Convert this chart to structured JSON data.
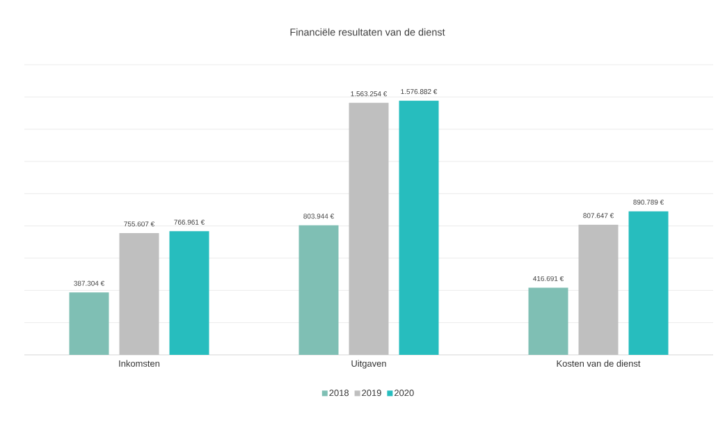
{
  "chart_data": {
    "type": "bar",
    "title": "Financiële resultaten van de dienst",
    "categories": [
      "Inkomsten",
      "Uitgaven",
      "Kosten van de dienst"
    ],
    "series": [
      {
        "name": "2018",
        "color": "#7fbfb4",
        "values": [
          387304,
          803944,
          416691
        ],
        "value_labels": [
          "387.304 €",
          "803.944 €",
          "416.691 €"
        ]
      },
      {
        "name": "2019",
        "color": "#bfbfbf",
        "values": [
          755607,
          1563254,
          807647
        ],
        "value_labels": [
          "755.607 €",
          "1.563.254 €",
          "807.647 €"
        ]
      },
      {
        "name": "2020",
        "color": "#27bdbe",
        "values": [
          766961,
          1576882,
          890789
        ],
        "value_labels": [
          "766.961 €",
          "1.576.882 €",
          "890.789 €"
        ]
      }
    ],
    "ylim": [
      0,
      1800000
    ],
    "yticks": [
      {
        "value": 0,
        "label": null
      },
      {
        "value": 200000,
        "label": null
      },
      {
        "value": 400000,
        "label": null
      },
      {
        "value": 600000,
        "label": null
      },
      {
        "value": 800000,
        "label": null
      },
      {
        "value": 1000000,
        "label": null
      },
      {
        "value": 1200000,
        "label": null
      },
      {
        "value": 1400000,
        "label": null
      },
      {
        "value": 1600000,
        "label": null
      },
      {
        "value": 1800000,
        "label": null
      }
    ],
    "grid": "y",
    "legend": "bottom"
  }
}
